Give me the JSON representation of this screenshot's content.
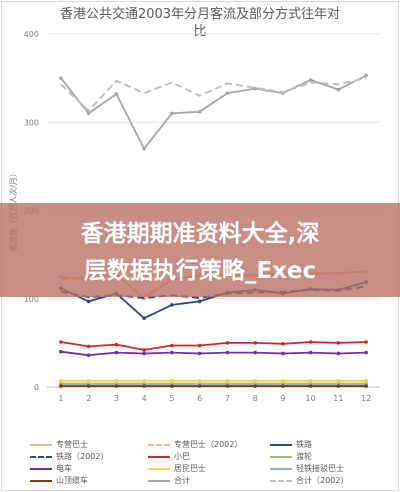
{
  "chart_data": {
    "type": "line",
    "title_line1": "香港公共交通2003年分月客流及部分方式往年对",
    "title_line2": "比",
    "ylabel": "客流量（百万人次/月）",
    "x": [
      1,
      2,
      3,
      4,
      5,
      6,
      7,
      8,
      9,
      10,
      11,
      12
    ],
    "xticks": [
      "1",
      "2",
      "3",
      "4",
      "5",
      "6",
      "7",
      "8",
      "9",
      "10",
      "11",
      "12"
    ],
    "yticks": [
      "0",
      "100",
      "200",
      "300",
      "400"
    ],
    "ylim": [
      0,
      400
    ],
    "grid": true,
    "legend_position": "bottom",
    "series": [
      {
        "name": "专营巴士",
        "color": "#e8b48a",
        "dash": false,
        "values": [
          125,
          122,
          128,
          100,
          122,
          126,
          128,
          126,
          127,
          128,
          129,
          131
        ]
      },
      {
        "name": "专营巴士（2002）",
        "color": "#f2b891",
        "dash": true,
        "values": [
          123,
          123,
          127,
          102,
          123,
          125,
          127,
          127,
          128,
          129,
          129,
          131
        ]
      },
      {
        "name": "铁路",
        "color": "#2e4a7a",
        "dash": false,
        "values": [
          112,
          97,
          106,
          78,
          93,
          97,
          107,
          110,
          106,
          111,
          110,
          119
        ]
      },
      {
        "name": "铁路（2002）",
        "color": "#2e4a7a",
        "dash": true,
        "values": [
          108,
          102,
          104,
          101,
          104,
          101,
          106,
          107,
          108,
          110,
          109,
          114
        ]
      },
      {
        "name": "小巴",
        "color": "#d9222a",
        "dash": false,
        "values": [
          51,
          46,
          48,
          42,
          47,
          47,
          50,
          50,
          49,
          51,
          50,
          51
        ]
      },
      {
        "name": "渡轮",
        "color": "#9fc26e",
        "dash": false,
        "values": [
          4,
          4,
          4,
          4,
          4,
          4,
          4,
          4,
          4,
          4,
          4,
          4
        ]
      },
      {
        "name": "电车",
        "color": "#7030a0",
        "dash": false,
        "values": [
          40,
          36,
          39,
          38,
          39,
          38,
          39,
          39,
          38,
          39,
          38,
          39
        ]
      },
      {
        "name": "居民巴士",
        "color": "#f5d44a",
        "dash": false,
        "values": [
          7,
          7,
          7,
          7,
          7,
          7,
          7,
          7,
          7,
          7,
          7,
          7
        ]
      },
      {
        "name": "轻铁接驳巴士",
        "color": "#8faadc",
        "dash": false,
        "values": [
          2,
          2,
          2,
          2,
          2,
          2,
          2,
          2,
          2,
          2,
          2,
          2
        ]
      },
      {
        "name": "山顶缆车",
        "color": "#7f3f00",
        "dash": false,
        "values": [
          1,
          1,
          1,
          1,
          1,
          1,
          1,
          1,
          1,
          1,
          1,
          1
        ]
      },
      {
        "name": "合计",
        "color": "#a6a6a6",
        "dash": false,
        "values": [
          350,
          310,
          332,
          270,
          310,
          312,
          333,
          338,
          333,
          348,
          337,
          353
        ]
      },
      {
        "name": "合计（2002）",
        "color": "#c0c0c0",
        "dash": true,
        "values": [
          343,
          313,
          347,
          333,
          345,
          330,
          344,
          339,
          334,
          345,
          343,
          350
        ]
      }
    ]
  },
  "watermark": {
    "line1": "香港期期准资料大全,深",
    "line2": "层数据执行策略_Exec"
  }
}
